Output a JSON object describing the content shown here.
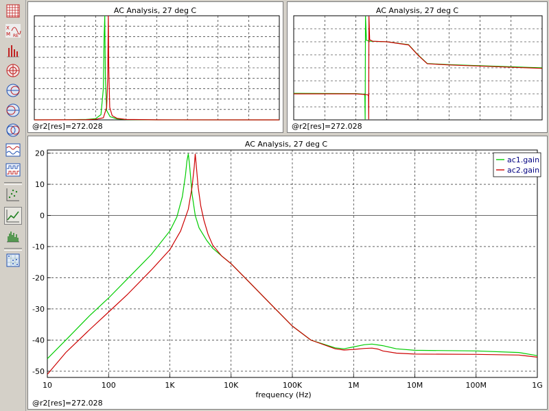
{
  "toolbar": {
    "buttons": [
      {
        "name": "grid-view-icon",
        "active": false
      },
      {
        "name": "xm-re-plot-icon",
        "active": false
      },
      {
        "name": "bar-graph-icon",
        "active": false
      },
      {
        "name": "polar-plot-icon",
        "active": false
      },
      {
        "name": "smith-chart-icon",
        "active": false
      },
      {
        "name": "smith-admittance-icon",
        "active": false
      },
      {
        "name": "smith-combined-icon",
        "active": false
      },
      {
        "name": "waveform-icon",
        "active": false
      },
      {
        "name": "digital-waveform-icon",
        "active": false
      },
      {
        "name": "scatter-plot-icon",
        "active": false
      },
      {
        "name": "line-plot-icon",
        "active": true
      },
      {
        "name": "histogram-icon",
        "active": false
      },
      {
        "name": "scatter-matrix-icon",
        "active": false
      }
    ]
  },
  "panels": {
    "top_left": {
      "title": "AC Analysis, 27 deg C",
      "status": "@r2[res]=272.028"
    },
    "top_right": {
      "title": "AC Analysis, 27 deg C",
      "status": "@r2[res]=272.028"
    },
    "main": {
      "title": "AC Analysis, 27 deg C",
      "status": "@r2[res]=272.028"
    }
  },
  "colors": {
    "ac1": "#00cc00",
    "ac2": "#cc0000"
  },
  "chart_data": [
    {
      "type": "line",
      "title": "AC Analysis, 27 deg C",
      "xlabel": "",
      "ylabel": "",
      "x_scale": "log",
      "grid": true,
      "note": "mini magnitude view, linear scale",
      "series": [
        {
          "x": [
            10,
            100,
            500,
            1000,
            1500,
            1800,
            1900,
            2000,
            2100,
            2300,
            3000,
            5000,
            10000,
            100000,
            1000000000
          ],
          "y": [
            0.003,
            0.01,
            0.04,
            0.12,
            0.5,
            3,
            8,
            10,
            4,
            0.9,
            0.3,
            0.1,
            0.03,
            0.003,
            0.001
          ]
        },
        {
          "x": [
            10,
            100,
            500,
            1000,
            1800,
            2300,
            2500,
            2600,
            2700,
            2900,
            3500,
            5000,
            10000,
            100000,
            1000000000
          ],
          "y": [
            0.002,
            0.008,
            0.02,
            0.05,
            0.2,
            1.2,
            4,
            10,
            5,
            1.2,
            0.4,
            0.15,
            0.04,
            0.004,
            0.001
          ]
        }
      ],
      "ylim": [
        0,
        10
      ]
    },
    {
      "type": "line",
      "title": "AC Analysis, 27 deg C",
      "xlabel": "",
      "ylabel": "",
      "x_scale": "log",
      "grid": true,
      "note": "mini phase view",
      "series": [
        {
          "x": [
            10,
            1000,
            1800,
            1950,
            2000,
            2050,
            2200,
            3000,
            10000,
            50000,
            100000,
            200000,
            1000000,
            1000000000
          ],
          "y": [
            -88,
            -89,
            -91,
            -95,
            -178,
            178,
            95,
            92,
            90,
            80,
            45,
            15,
            11,
            0
          ]
        },
        {
          "x": [
            10,
            1000,
            2400,
            2560,
            2600,
            2640,
            2800,
            3500,
            10000,
            50000,
            100000,
            200000,
            1000000,
            1000000000
          ],
          "y": [
            -90,
            -90,
            -93,
            -97,
            -178,
            178,
            97,
            92,
            90,
            79,
            44,
            14,
            10,
            -2
          ]
        }
      ],
      "ylim": [
        -180,
        180
      ]
    },
    {
      "type": "line",
      "title": "AC Analysis, 27 deg C",
      "xlabel": "frequency (Hz)",
      "ylabel": "",
      "x_scale": "log",
      "xlim": [
        10,
        1000000000
      ],
      "ylim": [
        -52,
        21
      ],
      "xticks": [
        10,
        100,
        1000,
        10000,
        100000,
        1000000,
        10000000,
        100000000,
        1000000000
      ],
      "xtick_labels": [
        "10",
        "100",
        "1K",
        "10K",
        "100K",
        "1M",
        "10M",
        "100M",
        "1G"
      ],
      "yticks": [
        20,
        10,
        0,
        -10,
        -20,
        -30,
        -40,
        -50
      ],
      "ytick_labels": [
        "20",
        "10",
        "0",
        "-10",
        "-20",
        "-30",
        "-40",
        "-50"
      ],
      "grid": true,
      "legend": {
        "position": "top-right",
        "entries": [
          "ac1.gain",
          "ac2.gain"
        ]
      },
      "series": [
        {
          "name": "ac1.gain",
          "x": [
            10,
            20,
            50,
            100,
            200,
            500,
            1000,
            1300,
            1600,
            1800,
            1900,
            2000,
            2100,
            2300,
            2600,
            3000,
            4000,
            5000,
            7000,
            10000,
            20000,
            50000,
            100000,
            200000,
            500000,
            700000,
            1000000,
            1500000,
            2000000,
            3000000,
            5000000,
            10000000,
            100000000,
            500000000,
            1000000000
          ],
          "y": [
            -46,
            -40,
            -32,
            -26.5,
            -20.5,
            -12.5,
            -5,
            -0.5,
            6,
            13,
            17.5,
            19.8,
            16,
            7,
            0,
            -4,
            -8,
            -10.5,
            -13,
            -15.5,
            -21.5,
            -29.5,
            -35.5,
            -40,
            -42.5,
            -42.8,
            -42.2,
            -41.5,
            -41.3,
            -41.8,
            -42.8,
            -43.3,
            -43.5,
            -44,
            -45
          ]
        },
        {
          "name": "ac2.gain",
          "x": [
            10,
            20,
            50,
            100,
            200,
            500,
            1000,
            1500,
            2000,
            2300,
            2500,
            2600,
            2700,
            2900,
            3200,
            3600,
            4200,
            5000,
            7000,
            10000,
            20000,
            50000,
            100000,
            200000,
            500000,
            700000,
            1000000,
            1500000,
            2000000,
            2500000,
            3000000,
            5000000,
            10000000,
            100000000,
            500000000,
            1000000000
          ],
          "y": [
            -51,
            -44,
            -36.5,
            -31,
            -25.5,
            -17.5,
            -11,
            -5,
            2,
            9,
            15.5,
            19.8,
            16,
            9,
            3,
            -1.5,
            -6,
            -9.5,
            -13,
            -15.5,
            -21.5,
            -29.5,
            -35.5,
            -40,
            -42.8,
            -43.2,
            -43,
            -42.7,
            -42.6,
            -42.9,
            -43.5,
            -44.2,
            -44.5,
            -44.6,
            -44.8,
            -45.5
          ]
        }
      ]
    }
  ]
}
